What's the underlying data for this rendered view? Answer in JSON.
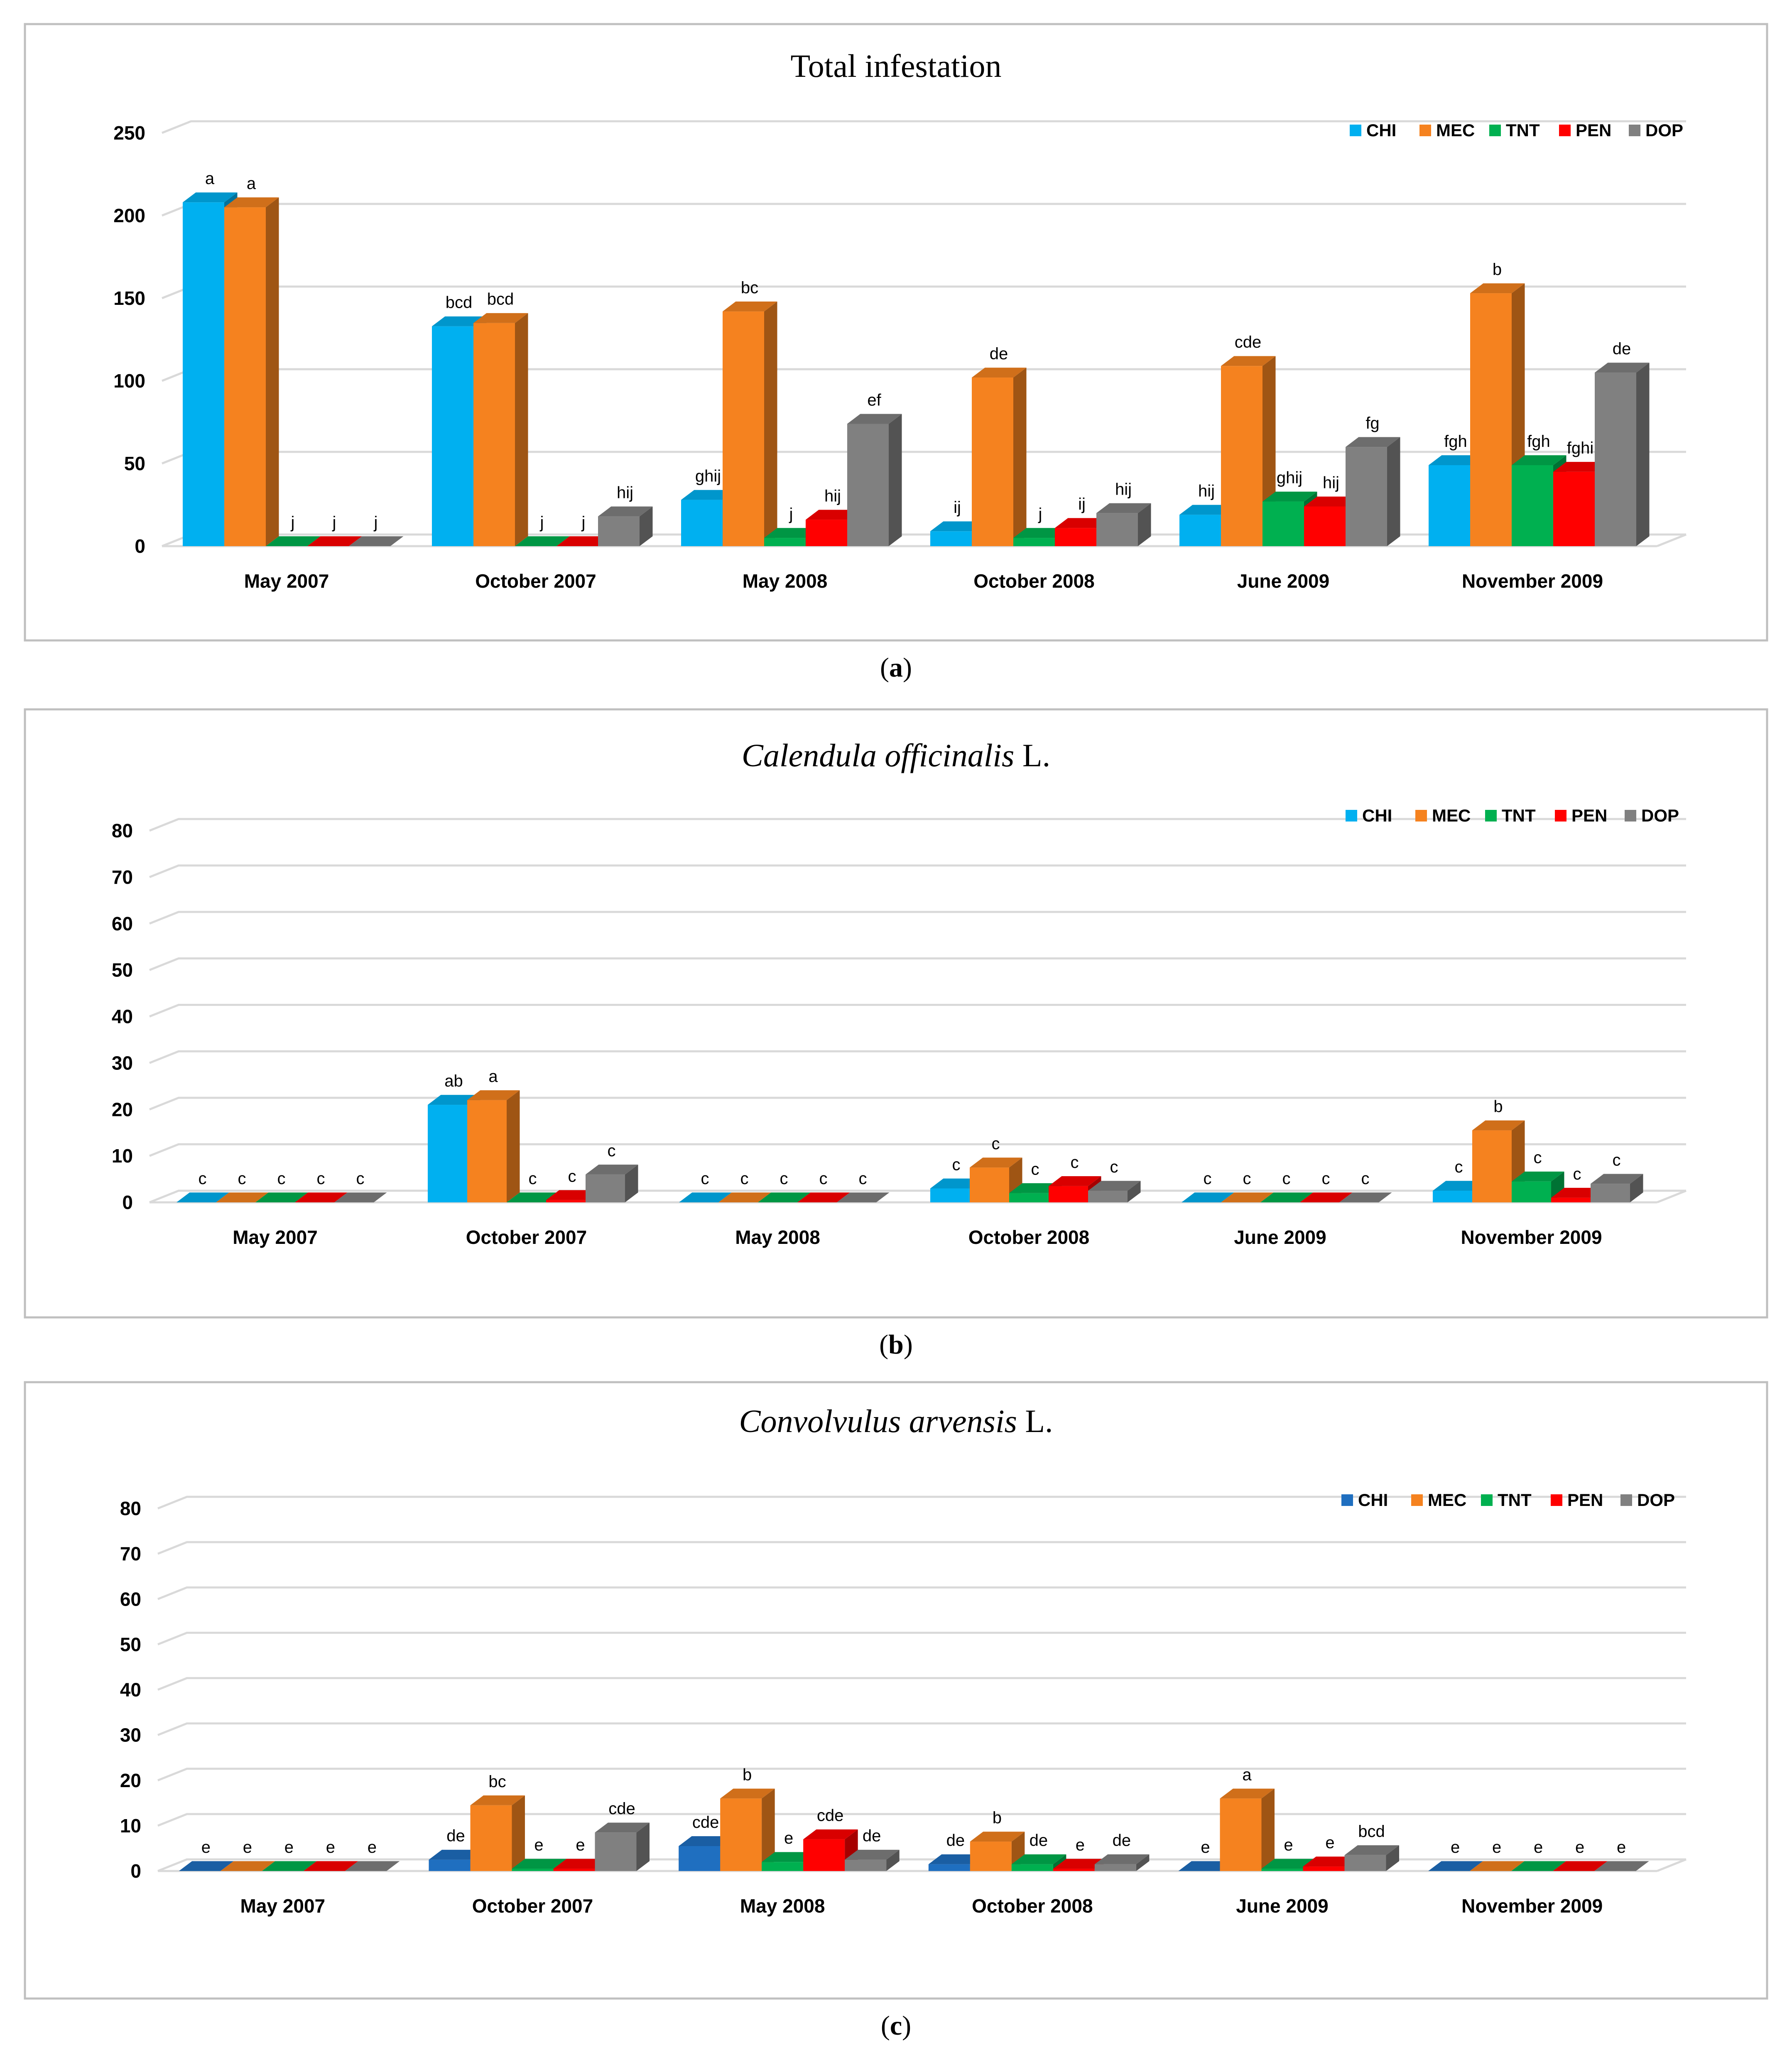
{
  "chart_data": [
    {
      "type": "bar",
      "title": "Total infestation",
      "title_italic": "",
      "title_suffix": "",
      "categories": [
        "May 2007",
        "October 2007",
        "May 2008",
        "October 2008",
        "June 2009",
        "November 2009"
      ],
      "ylim": [
        0,
        250
      ],
      "yticks": [
        0,
        50,
        100,
        150,
        200,
        250
      ],
      "grid": true,
      "legend_position": "top-right",
      "series": [
        {
          "name": "CHI",
          "color": "#00B0F0",
          "values": [
            208,
            133,
            28,
            9,
            19,
            49
          ],
          "labels": [
            "a",
            "bcd",
            "ghij",
            "ij",
            "hij",
            "fgh"
          ]
        },
        {
          "name": "MEC",
          "color": "#F5821F",
          "values": [
            205,
            135,
            142,
            102,
            109,
            153
          ],
          "labels": [
            "a",
            "bcd",
            "bc",
            "de",
            "cde",
            "b"
          ]
        },
        {
          "name": "TNT",
          "color": "#00B050",
          "values": [
            0,
            0,
            5,
            5,
            27,
            49
          ],
          "labels": [
            "j",
            "j",
            "j",
            "j",
            "ghij",
            "fgh"
          ]
        },
        {
          "name": "PEN",
          "color": "#FF0000",
          "values": [
            0,
            0,
            16,
            11,
            24,
            45
          ],
          "labels": [
            "j",
            "j",
            "hij",
            "ij",
            "hij",
            "fghi"
          ]
        },
        {
          "name": "DOP",
          "color": "#808080",
          "values": [
            0,
            18,
            74,
            20,
            60,
            105
          ],
          "labels": [
            "j",
            "hij",
            "ef",
            "hij",
            "fg",
            "de"
          ]
        }
      ],
      "caption": "a"
    },
    {
      "type": "bar",
      "title": "",
      "title_italic": "Calendula officinalis",
      "title_suffix": " L.",
      "categories": [
        "May 2007",
        "October 2007",
        "May 2008",
        "October 2008",
        "June 2009",
        "November 2009"
      ],
      "ylim": [
        0,
        80
      ],
      "yticks": [
        0,
        10,
        20,
        30,
        40,
        50,
        60,
        70,
        80
      ],
      "grid": true,
      "legend_position": "top-right",
      "series": [
        {
          "name": "CHI",
          "color": "#00B0F0",
          "values": [
            0,
            21,
            0,
            3,
            0,
            2.5
          ],
          "labels": [
            "c",
            "ab",
            "c",
            "c",
            "c",
            "c"
          ]
        },
        {
          "name": "MEC",
          "color": "#F5821F",
          "values": [
            0,
            22,
            0,
            7.5,
            0,
            15.5
          ],
          "labels": [
            "c",
            "a",
            "c",
            "c",
            "c",
            "b"
          ]
        },
        {
          "name": "TNT",
          "color": "#00B050",
          "values": [
            0,
            0,
            0,
            2,
            0,
            4.5
          ],
          "labels": [
            "c",
            "c",
            "c",
            "c",
            "c",
            "c"
          ]
        },
        {
          "name": "PEN",
          "color": "#FF0000",
          "values": [
            0,
            0.5,
            0,
            3.5,
            0,
            1
          ],
          "labels": [
            "c",
            "c",
            "c",
            "c",
            "c",
            "c"
          ]
        },
        {
          "name": "DOP",
          "color": "#808080",
          "values": [
            0,
            6,
            0,
            2.5,
            0,
            4
          ],
          "labels": [
            "c",
            "c",
            "c",
            "c",
            "c",
            "c"
          ]
        }
      ],
      "caption": "b"
    },
    {
      "type": "bar",
      "title": "",
      "title_italic": "Convolvulus arvensis",
      "title_suffix": " L.",
      "categories": [
        "May 2007",
        "October 2007",
        "May 2008",
        "October 2008",
        "June 2009",
        "November 2009"
      ],
      "ylim": [
        0,
        80
      ],
      "yticks": [
        0,
        10,
        20,
        30,
        40,
        50,
        60,
        70,
        80
      ],
      "grid": true,
      "legend_position": "top-right",
      "series": [
        {
          "name": "CHI",
          "color": "#1F6FC0",
          "values": [
            0,
            2.5,
            5.5,
            1.5,
            0,
            0
          ],
          "labels": [
            "e",
            "de",
            "cde",
            "de",
            "e",
            "e"
          ]
        },
        {
          "name": "MEC",
          "color": "#F5821F",
          "values": [
            0,
            14.5,
            16,
            6.5,
            16,
            0
          ],
          "labels": [
            "e",
            "bc",
            "b",
            "b",
            "a",
            "e"
          ]
        },
        {
          "name": "TNT",
          "color": "#00B050",
          "values": [
            0,
            0.5,
            2,
            1.5,
            0.5,
            0
          ],
          "labels": [
            "e",
            "e",
            "e",
            "de",
            "e",
            "e"
          ]
        },
        {
          "name": "PEN",
          "color": "#FF0000",
          "values": [
            0,
            0.5,
            7,
            0.5,
            1,
            0
          ],
          "labels": [
            "e",
            "e",
            "cde",
            "e",
            "e",
            "e"
          ]
        },
        {
          "name": "DOP",
          "color": "#808080",
          "values": [
            0,
            8.5,
            2.5,
            1.5,
            3.5,
            0
          ],
          "labels": [
            "e",
            "cde",
            "de",
            "de",
            "bcd",
            "e"
          ]
        }
      ],
      "caption": "c"
    }
  ]
}
